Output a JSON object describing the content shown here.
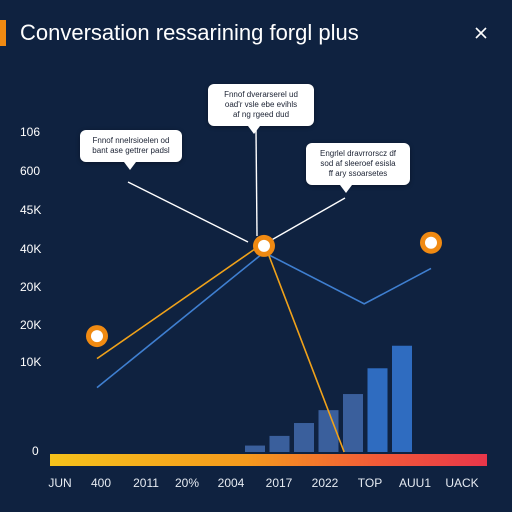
{
  "window": {
    "title": "Conversation ressarining forgl plus"
  },
  "icons": {
    "close": "close-icon"
  },
  "colors": {
    "background": "#0f2240",
    "accent": "#f08a12",
    "line_blue": "#3f7fd0",
    "line_orange": "#f0a21a",
    "bar_blue": "#2f63a6",
    "marker": "#f08a12"
  },
  "callouts": [
    {
      "lines": [
        "Fnnof dverarserel ud",
        "oad'r vsle ebe evihls",
        "af ng rgeed dud"
      ]
    },
    {
      "lines": [
        "Fnnof nnelrsioelen od",
        "bant ase gettrer padsl"
      ]
    },
    {
      "lines": [
        "Engrlel dravrrorscz df",
        "sod af sleeroef esisla",
        "ff ary ssoarsetes"
      ]
    }
  ],
  "chart_data": {
    "type": "line",
    "title": "Conversation ressarining forgl plus",
    "y_tick_labels": [
      "106",
      "600",
      "45K",
      "40K",
      "20K",
      "20K",
      "10K",
      "0"
    ],
    "x_tick_labels": [
      "JUN",
      "400",
      "2011",
      "20%",
      "2004",
      "2017",
      "2022",
      "TOP",
      "AUU1",
      "UACK"
    ],
    "series": [
      {
        "values": [
          {
            "x": 0.0,
            "y": 0.2
          },
          {
            "x": 0.5,
            "y": 0.62
          },
          {
            "x": 0.8,
            "y": 0.46
          },
          {
            "x": 1.0,
            "y": 0.57
          }
        ]
      },
      {
        "values": [
          {
            "x": 0.0,
            "y": 0.29
          },
          {
            "x": 0.5,
            "y": 0.65
          },
          {
            "x": 0.74,
            "y": 0.0
          }
        ]
      },
      {
        "type": "bar",
        "values": [
          0.02,
          0.05,
          0.09,
          0.13,
          0.18,
          0.26,
          0.33
        ]
      }
    ],
    "markers": [
      {
        "x": 0.0,
        "y": 0.36
      },
      {
        "x": 0.5,
        "y": 0.64
      },
      {
        "x": 1.0,
        "y": 0.65
      }
    ],
    "grid": false,
    "legend": "none"
  }
}
